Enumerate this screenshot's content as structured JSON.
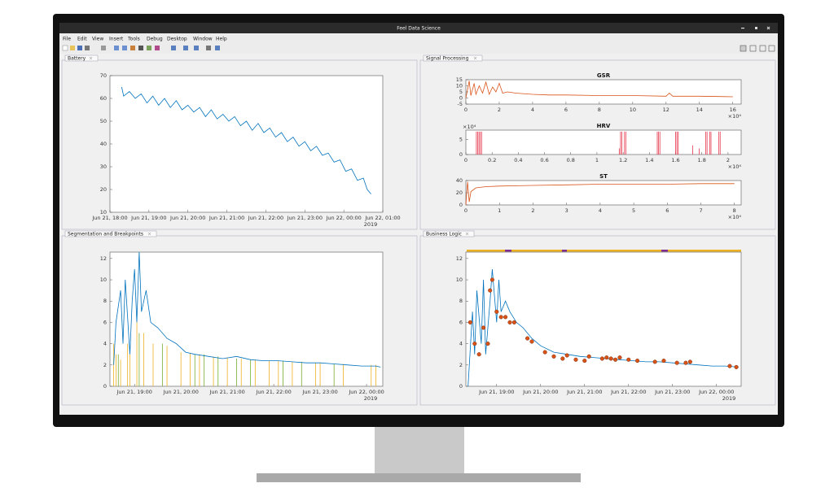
{
  "window": {
    "title": "Feel Data Science",
    "menu": [
      "File",
      "Edit",
      "View",
      "Insert",
      "Tools",
      "Debug",
      "Desktop",
      "Window",
      "Help"
    ]
  },
  "panels": {
    "battery": {
      "tab": "Battery",
      "xlim": [
        0,
        7
      ],
      "ylim": [
        10,
        70
      ],
      "yticks": [
        10,
        20,
        30,
        40,
        50,
        60,
        70
      ],
      "xticks": [
        {
          "value": 0,
          "label": "Jun 21, 18:00"
        },
        {
          "value": 1,
          "label": "Jun 21, 19:00"
        },
        {
          "value": 2,
          "label": "Jun 21, 20:00"
        },
        {
          "value": 3,
          "label": "Jun 21, 21:00"
        },
        {
          "value": 4,
          "label": "Jun 21, 22:00"
        },
        {
          "value": 5,
          "label": "Jun 21, 23:00"
        },
        {
          "value": 6,
          "label": "Jun 22, 00:00"
        },
        {
          "value": 7,
          "label": "Jun 22, 01:00"
        }
      ],
      "x_note": "2019",
      "series": [
        {
          "style": "line",
          "color": "#0072bd",
          "x": [
            0.3,
            0.35,
            0.5,
            0.65,
            0.8,
            0.95,
            1.1,
            1.25,
            1.4,
            1.55,
            1.7,
            1.85,
            2.0,
            2.15,
            2.3,
            2.45,
            2.6,
            2.75,
            2.9,
            3.05,
            3.2,
            3.35,
            3.5,
            3.65,
            3.8,
            3.95,
            4.1,
            4.25,
            4.4,
            4.55,
            4.7,
            4.85,
            5.0,
            5.15,
            5.3,
            5.45,
            5.6,
            5.75,
            5.9,
            6.05,
            6.2,
            6.35,
            6.5,
            6.6,
            6.7
          ],
          "values": [
            65,
            61,
            63,
            60,
            62,
            58,
            61,
            57,
            60,
            56,
            59,
            55,
            57,
            54,
            56,
            52,
            55,
            51,
            53,
            50,
            52,
            48,
            50,
            46,
            49,
            45,
            47,
            43,
            45,
            41,
            43,
            39,
            41,
            37,
            39,
            35,
            36,
            32,
            33,
            28,
            29,
            24,
            25,
            20,
            18
          ]
        }
      ]
    },
    "signal": {
      "tab": "Signal Processing",
      "plots": [
        {
          "title": "GSR",
          "xlim": [
            0,
            16.5
          ],
          "ylim": [
            -5,
            15
          ],
          "yticks": [
            -5,
            0,
            5,
            10,
            15
          ],
          "xticks": [
            0,
            2,
            4,
            6,
            8,
            10,
            12,
            14,
            16
          ],
          "x_exponent": "×10⁴",
          "series": [
            {
              "style": "line",
              "color": "#d95319",
              "x": [
                0,
                0.2,
                0.3,
                0.5,
                0.6,
                0.8,
                1.0,
                1.2,
                1.4,
                1.6,
                1.8,
                2.0,
                2.2,
                2.5,
                3,
                4,
                5,
                6,
                8,
                10,
                12,
                12.2,
                12.4,
                14,
                16
              ],
              "values": [
                0,
                14,
                2,
                12,
                3,
                10,
                4,
                13,
                3,
                9,
                5,
                12,
                4,
                5,
                4,
                3,
                2.5,
                2.5,
                2,
                2,
                1.5,
                4,
                1.5,
                1.5,
                1
              ]
            }
          ]
        },
        {
          "title": "HRV",
          "xlim": [
            0,
            2.1
          ],
          "ylim": [
            0,
            8
          ],
          "yticks": [
            0,
            5
          ],
          "xticks": [
            0,
            0.2,
            0.4,
            0.6,
            0.8,
            1,
            1.2,
            1.4,
            1.6,
            1.8,
            2
          ],
          "x_exponent": "×10⁴",
          "y_exponent": "×10⁴",
          "series": [
            {
              "style": "stems",
              "color": "#e63a4f",
              "x": [
                0.08,
                0.09,
                0.1,
                0.11,
                0.12,
                1.17,
                1.18,
                1.19,
                1.21,
                1.22,
                1.46,
                1.47,
                1.48,
                1.6,
                1.61,
                1.62,
                1.73,
                1.78,
                1.83,
                1.84,
                1.86,
                1.87,
                1.93,
                1.94
              ],
              "values": [
                7.5,
                7.5,
                7.5,
                7.5,
                7.5,
                2,
                7.5,
                7.5,
                7.5,
                7.5,
                7.5,
                7.5,
                7.5,
                7.5,
                7.5,
                7.5,
                3,
                2,
                7.5,
                7.5,
                7.5,
                7.5,
                7.5,
                7.5
              ]
            }
          ]
        },
        {
          "title": "ST",
          "xlim": [
            0,
            8.2
          ],
          "ylim": [
            0,
            40
          ],
          "yticks": [
            0,
            20,
            40
          ],
          "xticks": [
            0,
            1,
            2,
            3,
            4,
            5,
            6,
            7,
            8
          ],
          "x_exponent": "×10⁴",
          "series": [
            {
              "style": "line",
              "color": "#d95319",
              "x": [
                0,
                0.05,
                0.1,
                0.15,
                0.3,
                0.6,
                1,
                2,
                3,
                4,
                5,
                6,
                7,
                8
              ],
              "values": [
                0,
                38,
                5,
                22,
                28,
                30,
                31,
                32,
                33,
                34,
                34,
                34,
                35,
                35
              ]
            }
          ]
        }
      ]
    },
    "segmentation": {
      "tab": "Segmentation and Breakpoints",
      "xlim": [
        0.47,
        6.35
      ],
      "ylim": [
        0,
        12.6
      ],
      "yticks": [
        0,
        2,
        4,
        6,
        8,
        10,
        12
      ],
      "xticks": [
        {
          "value": 1,
          "label": "Jun 21, 19:00"
        },
        {
          "value": 2,
          "label": "Jun 21, 20:00"
        },
        {
          "value": 3,
          "label": "Jun 21, 21:00"
        },
        {
          "value": 4,
          "label": "Jun 21, 22:00"
        },
        {
          "value": 5,
          "label": "Jun 21, 23:00"
        },
        {
          "value": 6,
          "label": "Jun 22, 00:00"
        }
      ],
      "x_note": "2019",
      "series": [
        {
          "style": "stems",
          "color": "#edb120",
          "x": [
            0.55,
            0.6,
            0.7,
            0.85,
            0.9,
            1.05,
            1.2,
            1.4,
            1.7,
            2.0,
            2.2,
            2.4,
            2.7,
            3.0,
            3.3,
            3.6,
            3.9,
            4.1,
            4.4,
            4.9,
            5.0,
            5.5,
            6.1,
            6.2
          ],
          "values": [
            4,
            3,
            2.5,
            4,
            3,
            6,
            5,
            4,
            3.8,
            3.2,
            3.1,
            3,
            2.8,
            2.7,
            2.6,
            2.5,
            2.4,
            2.4,
            2.3,
            2.2,
            2.2,
            2.1,
            2,
            2
          ]
        },
        {
          "style": "stems",
          "color": "#77ac30",
          "x": [
            0.65,
            1.1,
            1.6,
            2.3,
            2.5,
            2.8,
            3.2,
            3.5,
            4.2,
            4.6,
            5.3
          ],
          "values": [
            3,
            5,
            4,
            3,
            3,
            2.8,
            2.6,
            2.5,
            2.4,
            2.3,
            2.1
          ]
        },
        {
          "style": "line",
          "color": "#0072bd",
          "x": [
            0.55,
            0.6,
            0.7,
            0.75,
            0.8,
            0.9,
            0.95,
            1.0,
            1.05,
            1.1,
            1.15,
            1.25,
            1.35,
            1.5,
            1.7,
            1.9,
            2.1,
            2.3,
            2.6,
            2.9,
            3.2,
            3.5,
            3.8,
            4.1,
            4.4,
            4.7,
            5.0,
            5.3,
            5.6,
            5.9,
            6.2,
            6.3
          ],
          "values": [
            2,
            6,
            9,
            4,
            10,
            3,
            8,
            11,
            6,
            12.6,
            7,
            9,
            6,
            5.5,
            4.5,
            4,
            3.2,
            3,
            2.8,
            2.6,
            2.8,
            2.5,
            2.4,
            2.4,
            2.3,
            2.2,
            2.2,
            2.1,
            2,
            1.9,
            1.9,
            1.8
          ]
        }
      ]
    },
    "business": {
      "tab": "Business Logic",
      "xlim": [
        0.3,
        6.56
      ],
      "ylim": [
        0,
        12.6
      ],
      "yticks": [
        0,
        2,
        4,
        6,
        8,
        10,
        12
      ],
      "xticks": [
        {
          "value": 1,
          "label": "Jun 21, 19:00"
        },
        {
          "value": 2,
          "label": "Jun 21, 20:00"
        },
        {
          "value": 3,
          "label": "Jun 21, 21:00"
        },
        {
          "value": 4,
          "label": "Jun 21, 22:00"
        },
        {
          "value": 5,
          "label": "Jun 21, 23:00"
        },
        {
          "value": 6,
          "label": "Jun 22, 00:00"
        }
      ],
      "x_note": "2019",
      "series": [
        {
          "style": "line",
          "color": "#0072bd",
          "x": [
            0.35,
            0.45,
            0.5,
            0.55,
            0.65,
            0.7,
            0.75,
            0.85,
            0.9,
            1.0,
            1.05,
            1.1,
            1.2,
            1.3,
            1.45,
            1.6,
            1.8,
            2.0,
            2.3,
            2.6,
            2.9,
            3.2,
            3.5,
            3.8,
            4.1,
            4.4,
            4.7,
            5.0,
            5.3,
            5.6,
            5.9,
            6.2,
            6.5
          ],
          "values": [
            0,
            7,
            3,
            9,
            4,
            10,
            3,
            8,
            11,
            6,
            10,
            7,
            8,
            7,
            6,
            5.5,
            4.5,
            3.8,
            3.2,
            3,
            2.8,
            2.7,
            2.6,
            2.5,
            2.4,
            2.3,
            2.3,
            2.2,
            2.1,
            2,
            1.9,
            1.9,
            1.8
          ]
        },
        {
          "style": "markers",
          "color": "#d95319",
          "x": [
            0.4,
            0.5,
            0.6,
            0.7,
            0.8,
            0.85,
            0.9,
            1.0,
            1.1,
            1.2,
            1.3,
            1.4,
            1.7,
            1.8,
            2.1,
            2.3,
            2.5,
            2.6,
            2.8,
            3.0,
            3.1,
            3.4,
            3.5,
            3.6,
            3.7,
            3.8,
            4.0,
            4.2,
            4.6,
            4.8,
            5.1,
            5.3,
            5.4,
            6.3,
            6.45
          ],
          "values": [
            6,
            4,
            3,
            5.5,
            4,
            9,
            10,
            7,
            6.5,
            6.5,
            6,
            6,
            4.5,
            4.2,
            3.2,
            2.8,
            2.6,
            2.9,
            2.5,
            2.4,
            2.8,
            2.6,
            2.7,
            2.6,
            2.5,
            2.7,
            2.5,
            2.4,
            2.3,
            2.4,
            2.2,
            2.2,
            2.3,
            1.9,
            1.8
          ]
        }
      ]
    }
  }
}
